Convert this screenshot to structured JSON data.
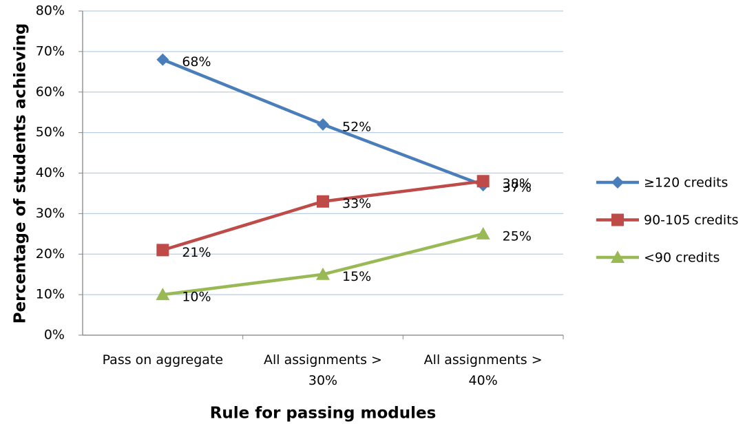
{
  "chart_data": {
    "type": "line",
    "y_label": "Percentage of students achieving",
    "x_label": "Rule for passing modules",
    "categories": [
      "Pass on aggregate",
      "All assignments > 30%",
      "All assignments > 40%"
    ],
    "series": [
      {
        "name": "≥120 credits",
        "color": "#4a7ebb",
        "marker": "diamond",
        "values": [
          68,
          52,
          37
        ],
        "value_labels": [
          "68%",
          "52%",
          "37%"
        ]
      },
      {
        "name": "90-105 credits",
        "color": "#be4b48",
        "marker": "square",
        "values": [
          21,
          33,
          38
        ],
        "value_labels": [
          "21%",
          "33%",
          "38%"
        ]
      },
      {
        "name": "<90 credits",
        "color": "#98b954",
        "marker": "triangle",
        "values": [
          10,
          15,
          25
        ],
        "value_labels": [
          "10%",
          "15%",
          "25%"
        ]
      }
    ],
    "ylim": [
      0,
      80
    ],
    "yticks": [
      {
        "value": 0,
        "label": "0%"
      },
      {
        "value": 10,
        "label": "10%"
      },
      {
        "value": 20,
        "label": "20%"
      },
      {
        "value": 30,
        "label": "30%"
      },
      {
        "value": 40,
        "label": "40%"
      },
      {
        "value": 50,
        "label": "50%"
      },
      {
        "value": 60,
        "label": "60%"
      },
      {
        "value": 70,
        "label": "70%"
      },
      {
        "value": 80,
        "label": "80%"
      }
    ],
    "grid": true,
    "legend": "right"
  }
}
